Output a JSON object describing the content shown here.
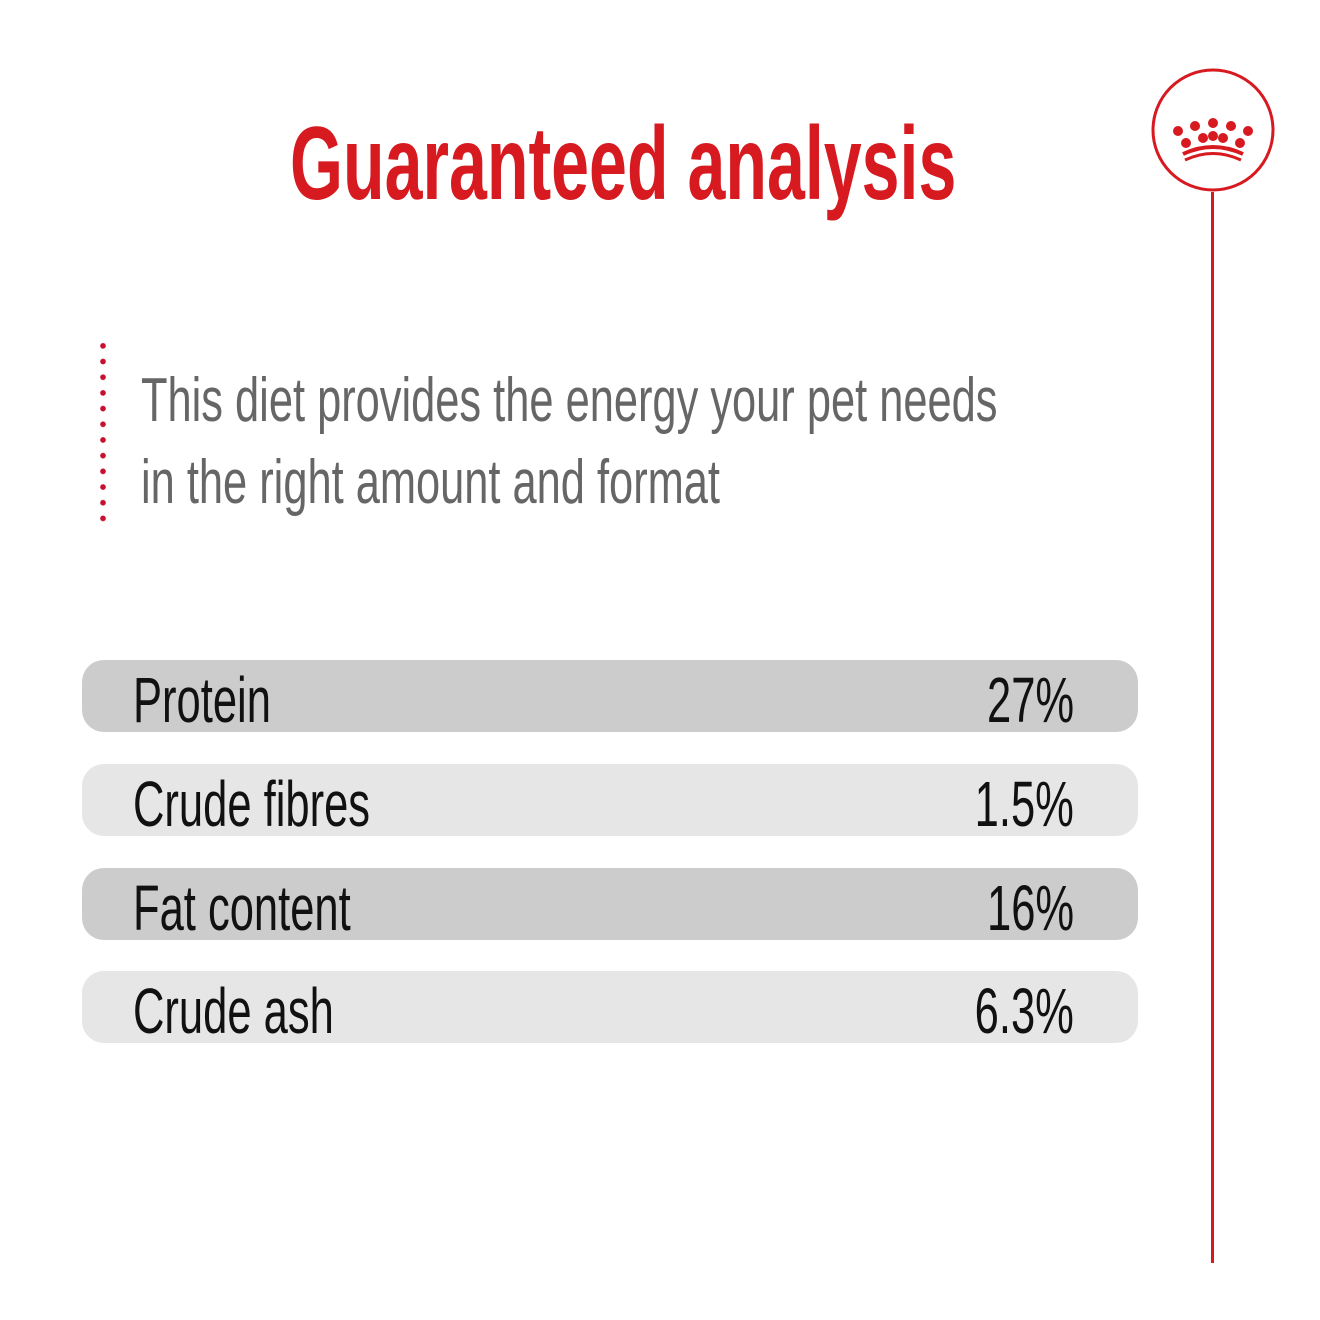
{
  "title": "Guaranteed analysis",
  "description": {
    "line1": "This diet provides the energy your pet needs",
    "line2": "in the right amount and format"
  },
  "rows": [
    {
      "label": "Protein",
      "value": "27%"
    },
    {
      "label": "Crude fibres",
      "value": "1.5%"
    },
    {
      "label": "Fat content",
      "value": "16%"
    },
    {
      "label": "Crude ash",
      "value": "6.3%"
    }
  ],
  "colors": {
    "accent": "#d71920",
    "text": "#666666",
    "row_dark": "#cccccc",
    "row_light": "#e6e6e6"
  },
  "logo": {
    "icon": "crown-icon"
  }
}
